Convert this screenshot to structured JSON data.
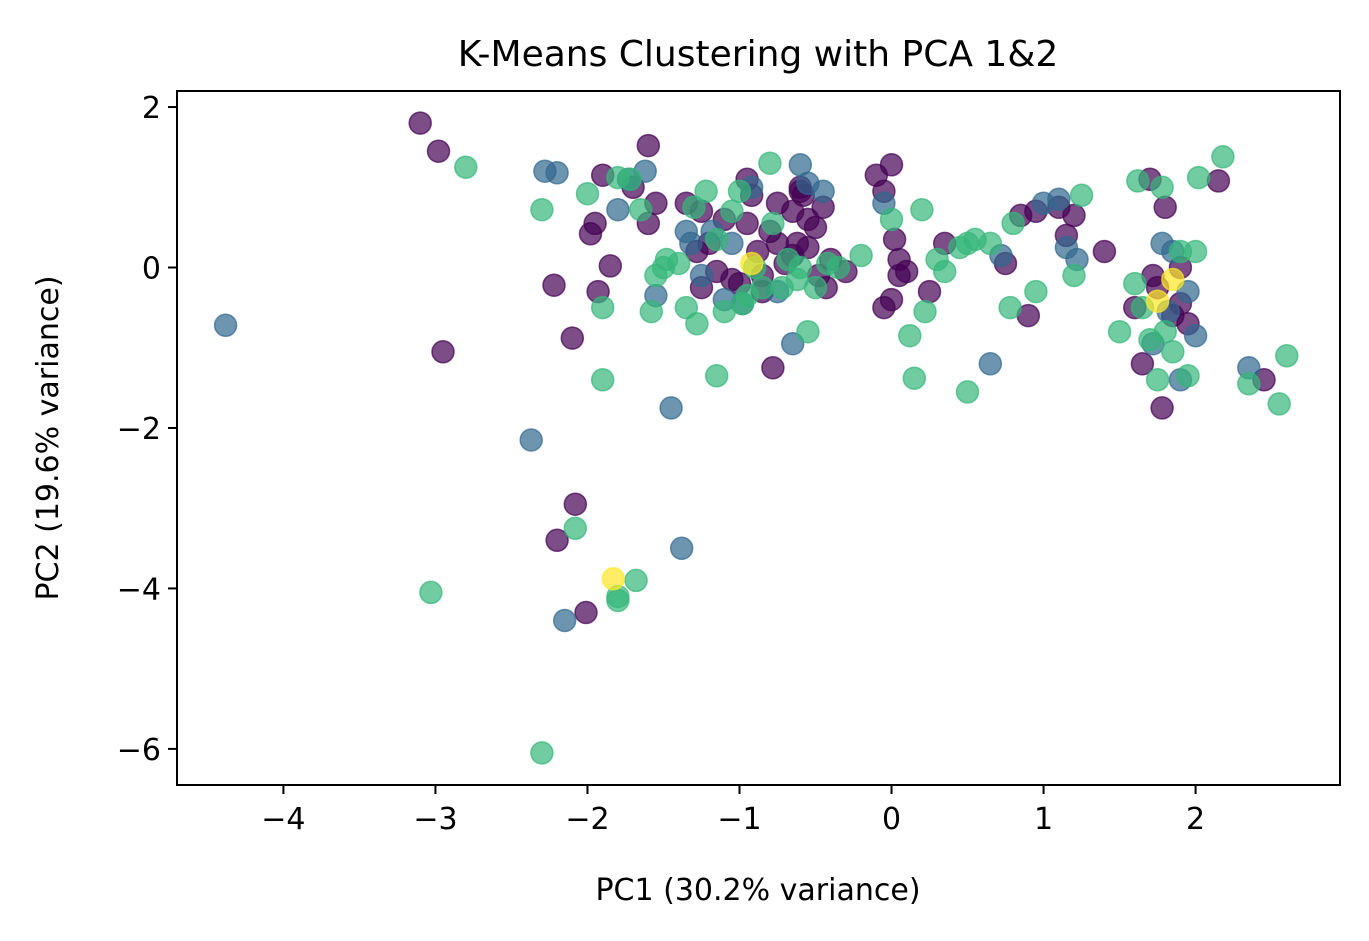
{
  "chart_data": {
    "type": "scatter",
    "title": "K-Means Clustering with PCA 1&2",
    "xlabel": "PC1 (30.2% variance)",
    "ylabel": "PC2 (19.6% variance)",
    "xlim": [
      -4.7,
      2.95
    ],
    "ylim": [
      -6.45,
      2.2
    ],
    "xticks": [
      -4,
      -3,
      -2,
      -1,
      0,
      1,
      2
    ],
    "yticks": [
      -6,
      -4,
      -2,
      0,
      2
    ],
    "xtick_labels": [
      "−4",
      "−3",
      "−2",
      "−1",
      "0",
      "1",
      "2"
    ],
    "ytick_labels": [
      "−6",
      "−4",
      "−2",
      "0",
      "2"
    ],
    "grid": false,
    "colormap": "viridis",
    "point_alpha": 0.7,
    "cluster_colors": {
      "0": "#440154",
      "1": "#31688e",
      "2": "#35b779",
      "3": "#fde725"
    },
    "series": [
      {
        "cluster": 0,
        "x": [
          -3.1,
          -2.98,
          -2.95,
          -2.22,
          -2.2,
          -2.1,
          -2.08,
          -2.01,
          -1.98,
          -1.95,
          -1.93,
          -1.9,
          -1.85,
          -1.6,
          -1.6,
          -1.55,
          -1.35,
          -1.28,
          -1.25,
          -1.2,
          -1.15,
          -1.1,
          -1.05,
          -1.0,
          -0.95,
          -0.92,
          -0.88,
          -0.85,
          -0.8,
          -0.78,
          -0.75,
          -0.7,
          -0.65,
          -0.62,
          -0.6,
          -0.58,
          -0.55,
          -0.5,
          -0.48,
          -0.45,
          -0.43,
          -0.4,
          -0.3,
          -0.1,
          -0.05,
          0.0,
          0.02,
          0.05,
          0.1,
          0.25,
          0.35,
          0.75,
          0.85,
          0.9,
          0.95,
          1.1,
          1.15,
          1.2,
          1.4,
          1.7,
          1.72,
          1.75,
          1.8,
          1.85,
          1.9,
          1.95,
          2.15,
          2.45,
          -0.05,
          0.0,
          -0.65,
          -0.55,
          -0.85,
          -1.7,
          -1.25,
          1.78,
          1.65,
          1.6,
          -0.95,
          -0.6,
          -0.75,
          0.05,
          1.9
        ],
        "y": [
          1.8,
          1.45,
          -1.05,
          -0.22,
          -3.4,
          -0.88,
          -2.95,
          -4.3,
          0.42,
          0.55,
          -0.3,
          1.15,
          0.02,
          1.52,
          0.55,
          0.8,
          0.8,
          0.2,
          0.7,
          0.3,
          -0.05,
          0.6,
          -0.15,
          -0.2,
          1.1,
          0.9,
          0.2,
          -0.3,
          0.45,
          -1.25,
          0.8,
          0.05,
          0.7,
          0.3,
          1.0,
          0.9,
          0.6,
          0.5,
          -0.1,
          0.75,
          -0.25,
          0.1,
          -0.05,
          1.15,
          0.95,
          1.28,
          0.35,
          -0.1,
          -0.05,
          -0.3,
          0.3,
          0.05,
          0.65,
          -0.6,
          0.7,
          0.75,
          0.4,
          0.65,
          0.2,
          1.1,
          -0.1,
          -0.25,
          0.75,
          -0.6,
          -0.45,
          -0.7,
          1.08,
          -1.4,
          -0.5,
          -0.4,
          0.15,
          0.25,
          -0.1,
          1.0,
          -0.25,
          -1.75,
          -1.2,
          -0.5,
          0.55,
          0.95,
          0.3,
          0.1,
          0.0
        ]
      },
      {
        "cluster": 1,
        "x": [
          -4.38,
          -2.37,
          -2.28,
          -2.2,
          -2.15,
          -1.8,
          -1.73,
          -1.62,
          -1.55,
          -1.45,
          -1.38,
          -1.35,
          -1.32,
          -1.25,
          -1.18,
          -1.1,
          -1.05,
          -0.98,
          -0.92,
          -0.75,
          -0.65,
          -0.6,
          -0.55,
          -0.45,
          -0.05,
          0.65,
          0.72,
          1.0,
          1.1,
          1.15,
          1.22,
          1.78,
          1.82,
          1.9,
          1.95,
          2.0,
          1.72,
          1.85,
          2.35
        ],
        "y": [
          -0.72,
          -2.15,
          1.2,
          1.18,
          -4.4,
          0.72,
          1.1,
          1.2,
          -0.35,
          -1.75,
          -3.5,
          0.45,
          0.3,
          -0.1,
          0.45,
          -0.4,
          0.3,
          -0.45,
          1.0,
          -0.3,
          -0.95,
          1.28,
          1.05,
          0.95,
          0.8,
          -1.2,
          0.15,
          0.8,
          0.85,
          0.25,
          0.1,
          0.3,
          -0.55,
          -1.4,
          -0.3,
          -0.85,
          -0.95,
          0.2,
          -1.25
        ]
      },
      {
        "cluster": 2,
        "x": [
          -2.8,
          -2.3,
          -2.08,
          -2.0,
          -1.9,
          -1.8,
          -1.72,
          -1.65,
          -1.58,
          -1.55,
          -1.5,
          -1.48,
          -1.4,
          -1.35,
          -1.3,
          -1.28,
          -1.22,
          -1.15,
          -1.1,
          -1.05,
          -1.0,
          -0.98,
          -0.95,
          -0.9,
          -0.85,
          -0.8,
          -0.78,
          -0.72,
          -0.68,
          -0.6,
          -0.55,
          -0.5,
          -0.42,
          -0.35,
          -0.2,
          0.0,
          0.12,
          0.15,
          0.2,
          0.22,
          0.3,
          0.35,
          0.45,
          0.5,
          0.55,
          0.65,
          0.8,
          0.95,
          1.2,
          1.25,
          1.5,
          1.62,
          1.65,
          1.7,
          1.75,
          1.8,
          1.85,
          1.9,
          1.95,
          2.0,
          2.02,
          2.18,
          2.35,
          2.55,
          2.6,
          -3.03,
          -2.3,
          -1.8,
          -1.68,
          -1.8,
          0.5,
          1.78,
          -1.9,
          -1.15,
          -0.62,
          0.78,
          1.6
        ],
        "y": [
          1.25,
          0.72,
          -3.25,
          0.92,
          -1.4,
          1.12,
          1.1,
          0.72,
          -0.55,
          -0.1,
          0.0,
          0.1,
          0.05,
          -0.5,
          0.75,
          -0.7,
          0.95,
          -1.35,
          -0.55,
          0.7,
          0.95,
          -0.45,
          -0.35,
          0.0,
          -0.25,
          1.3,
          0.55,
          -0.25,
          0.1,
          0.0,
          -0.8,
          -0.25,
          0.05,
          0.0,
          0.15,
          0.6,
          -0.85,
          -1.38,
          0.72,
          -0.55,
          0.1,
          -0.05,
          0.25,
          -1.55,
          0.35,
          0.3,
          0.55,
          -0.3,
          -0.1,
          0.9,
          -0.8,
          1.08,
          -0.5,
          -0.9,
          -1.4,
          -0.8,
          -1.05,
          0.2,
          -1.35,
          0.2,
          1.12,
          1.38,
          -1.45,
          -1.7,
          -1.1,
          -4.05,
          -6.05,
          -4.1,
          -3.9,
          -4.15,
          0.3,
          1.0,
          -0.5,
          0.35,
          -0.15,
          -0.5,
          -0.2
        ]
      },
      {
        "cluster": 3,
        "x": [
          -1.83,
          -0.92,
          1.75,
          1.85
        ],
        "y": [
          -3.88,
          0.05,
          -0.42,
          -0.15
        ]
      }
    ]
  }
}
